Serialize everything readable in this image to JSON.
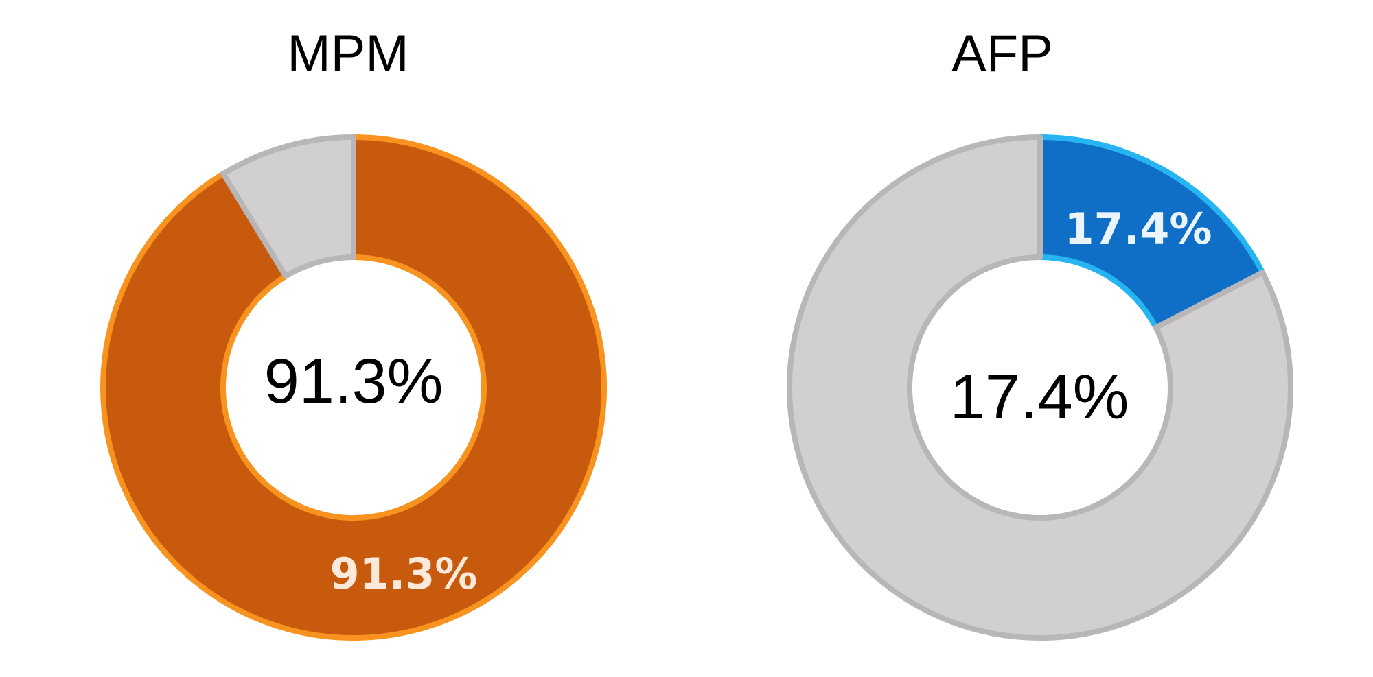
{
  "chart_data": [
    {
      "type": "pie",
      "title": "MPM",
      "center_label": "91.3%",
      "slice_label": "91.3%",
      "slices": [
        {
          "value": 91.3,
          "color": "#c85a0e",
          "edge_color": "#f7931e"
        },
        {
          "value": 8.7,
          "color": "#d1cfcf",
          "edge_color": "#b8b6b6"
        }
      ],
      "slice_label_color": "#fde9d9"
    },
    {
      "type": "pie",
      "title": "AFP",
      "center_label": "17.4%",
      "slice_label": "17.4%",
      "slices": [
        {
          "value": 17.4,
          "color": "#0f6fc6",
          "edge_color": "#27b5f2"
        },
        {
          "value": 82.6,
          "color": "#d1cfcf",
          "edge_color": "#b8b6b6"
        }
      ],
      "slice_label_color": "#ecf4fb"
    }
  ]
}
